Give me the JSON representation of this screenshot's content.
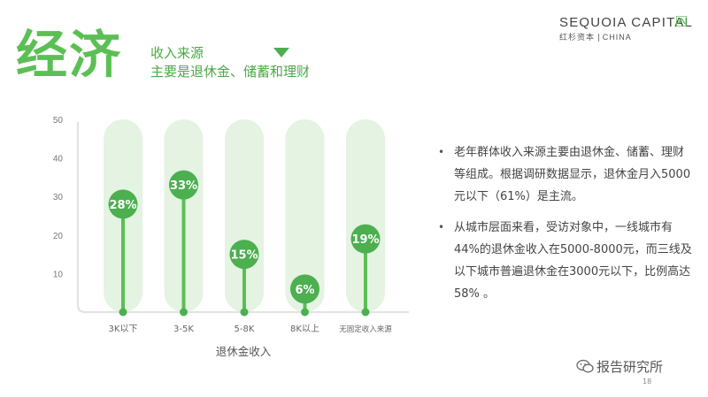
{
  "header": {
    "title": "经济",
    "subtitle_line1": "收入来源",
    "subtitle_line2": "主要是退休金、储蓄和理财"
  },
  "logo": {
    "name": "SEQUOIA CAPITAL",
    "cn": "红杉资本",
    "region": "CHINA"
  },
  "colors": {
    "accent": "#5cbf55",
    "marker": "#4caf50",
    "track": "#e4f3e2"
  },
  "chart_data": {
    "type": "bar",
    "categories": [
      "3K以下",
      "3-5K",
      "5-8K",
      "8K以上",
      "无固定收入来源"
    ],
    "values": [
      28,
      33,
      15,
      6,
      19
    ],
    "value_labels": [
      "28%",
      "33%",
      "15%",
      "6%",
      "19%"
    ],
    "xlabel": "退休金收入",
    "ylabel": "",
    "yticks": [
      10,
      20,
      30,
      40,
      50
    ],
    "ylim": [
      0,
      50
    ],
    "grid": false
  },
  "bullets": [
    "老年群体收入来源主要由退休金、储蓄、理财等组成。根据调研数据显示，退休金月入5000元以下（61%）是主流。",
    "从城市层面来看，受访对象中，一线城市有44%的退休金收入在5000-8000元，而三线及以下城市普遍退休金在3000元以下，比例高达58% 。"
  ],
  "bullet_symbol": "•",
  "footer": {
    "watermark": "报告研究所",
    "page": "18"
  }
}
